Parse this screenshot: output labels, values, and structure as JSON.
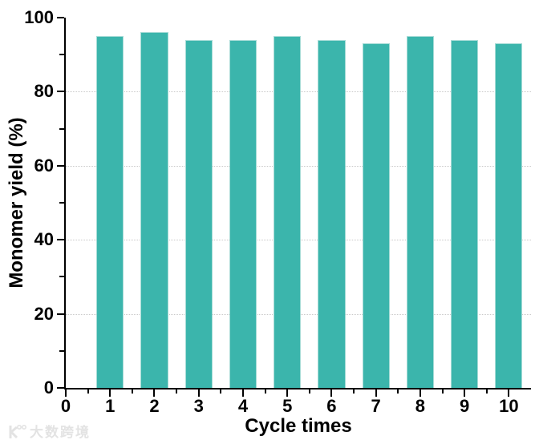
{
  "chart_data": {
    "type": "bar",
    "title": "",
    "xlabel": "Cycle times",
    "ylabel": "Monomer yield (%)",
    "categories": [
      1,
      2,
      3,
      4,
      5,
      6,
      7,
      8,
      9,
      10
    ],
    "values": [
      95,
      96,
      94,
      94,
      95,
      94,
      93,
      95,
      94,
      93
    ],
    "series_name": "Monomer yield",
    "xlim": [
      0,
      10.5
    ],
    "ylim": [
      0,
      100
    ],
    "xticks": [
      0,
      1,
      2,
      3,
      4,
      5,
      6,
      7,
      8,
      9,
      10
    ],
    "yticks": [
      0,
      20,
      40,
      60,
      80,
      100
    ],
    "x_minor_step": 0.5,
    "y_minor_step": 10,
    "grid": "horizontal dotted lines at major y ticks",
    "legend": "none",
    "bar_width_fraction": 0.62,
    "bar_color": "#3bb5ac",
    "bar_edge_color": "#a5dbd6"
  },
  "colors": {
    "background": "#ffffff",
    "axis": "#000000",
    "text": "#000000",
    "grid": "#c9c9c9",
    "watermark": "#e3e3e3"
  },
  "watermark": {
    "text": "大数跨境",
    "logo": "k-dots-logo"
  }
}
